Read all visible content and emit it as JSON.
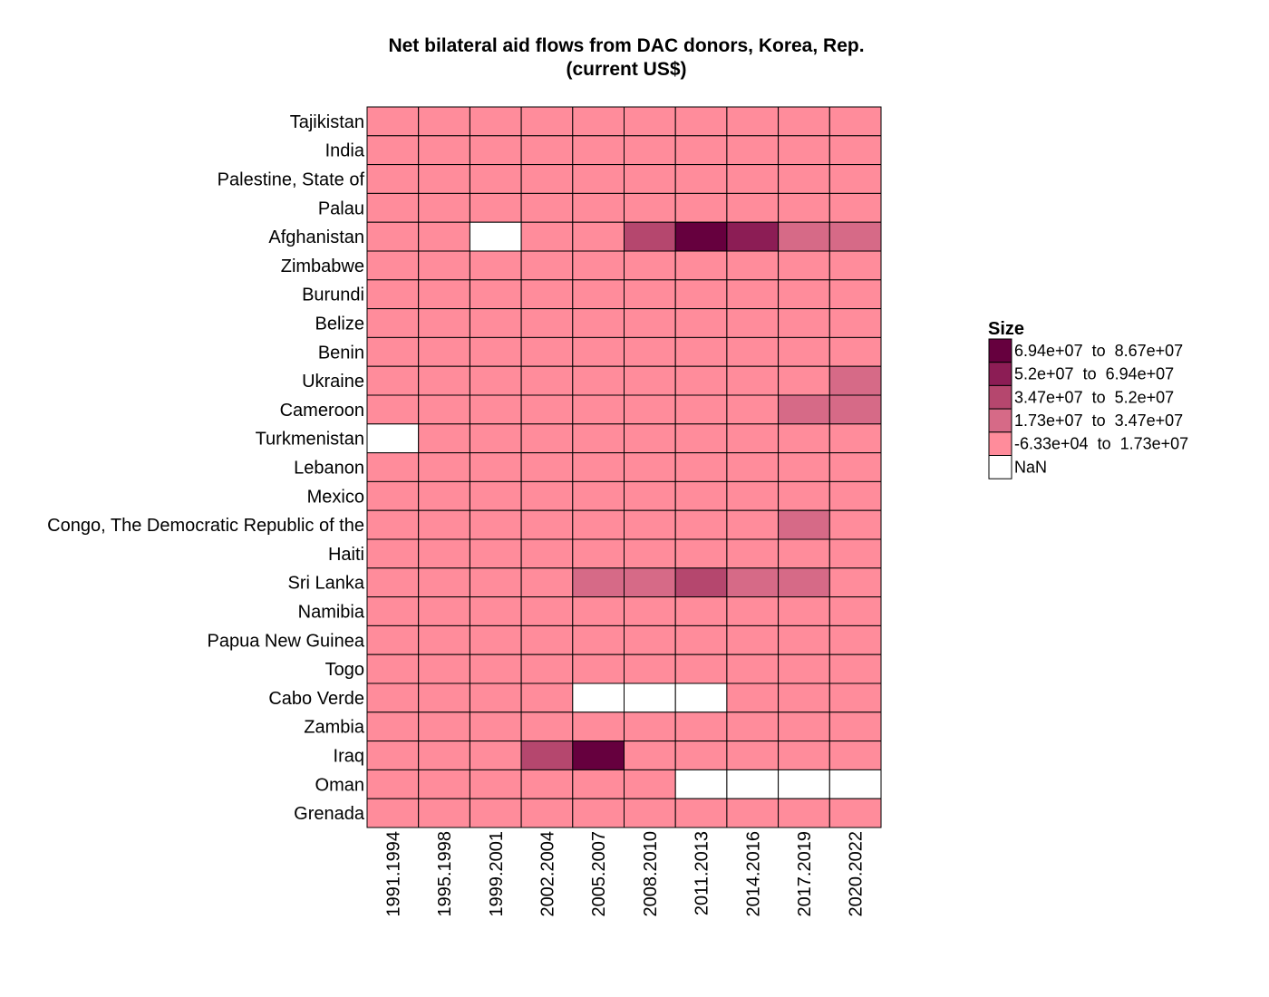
{
  "chart_data": {
    "type": "heatmap",
    "title_lines": [
      "Net bilateral aid flows from DAC donors, Korea, Rep.",
      "(current US$)"
    ],
    "x": [
      "1991.1994",
      "1995.1998",
      "1999.2001",
      "2002.2004",
      "2005.2007",
      "2008.2010",
      "2011.2013",
      "2014.2016",
      "2017.2019",
      "2020.2022"
    ],
    "y": [
      "Tajikistan",
      "India",
      "Palestine, State of",
      "Palau",
      "Afghanistan",
      "Zimbabwe",
      "Burundi",
      "Belize",
      "Benin",
      "Ukraine",
      "Cameroon",
      "Turkmenistan",
      "Lebanon",
      "Mexico",
      "Congo, The Democratic Republic of the",
      "Haiti",
      "Sri Lanka",
      "Namibia",
      "Papua New Guinea",
      "Togo",
      "Cabo Verde",
      "Zambia",
      "Iraq",
      "Oman",
      "Grenada"
    ],
    "bin_index": [
      [
        0,
        0,
        0,
        0,
        0,
        0,
        0,
        0,
        0,
        0
      ],
      [
        0,
        0,
        0,
        0,
        0,
        0,
        0,
        0,
        0,
        0
      ],
      [
        0,
        0,
        0,
        0,
        0,
        0,
        0,
        0,
        0,
        0
      ],
      [
        0,
        0,
        0,
        0,
        0,
        0,
        0,
        0,
        0,
        0
      ],
      [
        0,
        0,
        null,
        0,
        0,
        2,
        4,
        3,
        1,
        1
      ],
      [
        0,
        0,
        0,
        0,
        0,
        0,
        0,
        0,
        0,
        0
      ],
      [
        0,
        0,
        0,
        0,
        0,
        0,
        0,
        0,
        0,
        0
      ],
      [
        0,
        0,
        0,
        0,
        0,
        0,
        0,
        0,
        0,
        0
      ],
      [
        0,
        0,
        0,
        0,
        0,
        0,
        0,
        0,
        0,
        0
      ],
      [
        0,
        0,
        0,
        0,
        0,
        0,
        0,
        0,
        0,
        1
      ],
      [
        0,
        0,
        0,
        0,
        0,
        0,
        0,
        0,
        1,
        1
      ],
      [
        null,
        0,
        0,
        0,
        0,
        0,
        0,
        0,
        0,
        0
      ],
      [
        0,
        0,
        0,
        0,
        0,
        0,
        0,
        0,
        0,
        0
      ],
      [
        0,
        0,
        0,
        0,
        0,
        0,
        0,
        0,
        0,
        0
      ],
      [
        0,
        0,
        0,
        0,
        0,
        0,
        0,
        0,
        1,
        0
      ],
      [
        0,
        0,
        0,
        0,
        0,
        0,
        0,
        0,
        0,
        0
      ],
      [
        0,
        0,
        0,
        0,
        1,
        1,
        2,
        1,
        1,
        0
      ],
      [
        0,
        0,
        0,
        0,
        0,
        0,
        0,
        0,
        0,
        0
      ],
      [
        0,
        0,
        0,
        0,
        0,
        0,
        0,
        0,
        0,
        0
      ],
      [
        0,
        0,
        0,
        0,
        0,
        0,
        0,
        0,
        0,
        0
      ],
      [
        0,
        0,
        0,
        0,
        null,
        null,
        null,
        0,
        0,
        0
      ],
      [
        0,
        0,
        0,
        0,
        0,
        0,
        0,
        0,
        0,
        0
      ],
      [
        0,
        0,
        0,
        2,
        4,
        0,
        0,
        0,
        0,
        0
      ],
      [
        0,
        0,
        0,
        0,
        0,
        0,
        null,
        null,
        null,
        null
      ],
      [
        0,
        0,
        0,
        0,
        0,
        0,
        0,
        0,
        0,
        0
      ]
    ],
    "bins": [
      {
        "label": "-6.33e+04  to  1.73e+07",
        "min": -63300,
        "max": 17300000,
        "color": "#ff8c9b"
      },
      {
        "label": "1.73e+07  to  3.47e+07",
        "min": 17300000,
        "max": 34700000,
        "color": "#d66a87"
      },
      {
        "label": "3.47e+07  to  5.2e+07",
        "min": 34700000,
        "max": 52000000,
        "color": "#b5476e"
      },
      {
        "label": "5.2e+07  to  6.94e+07",
        "min": 52000000,
        "max": 69400000,
        "color": "#8c1d55"
      },
      {
        "label": "6.94e+07  to  8.67e+07",
        "min": 69400000,
        "max": 86700000,
        "color": "#66003e"
      }
    ],
    "legend": {
      "title": "Size",
      "placement": "right",
      "nan_label": "NaN",
      "nan_color": "#ffffff"
    },
    "grid": true
  }
}
